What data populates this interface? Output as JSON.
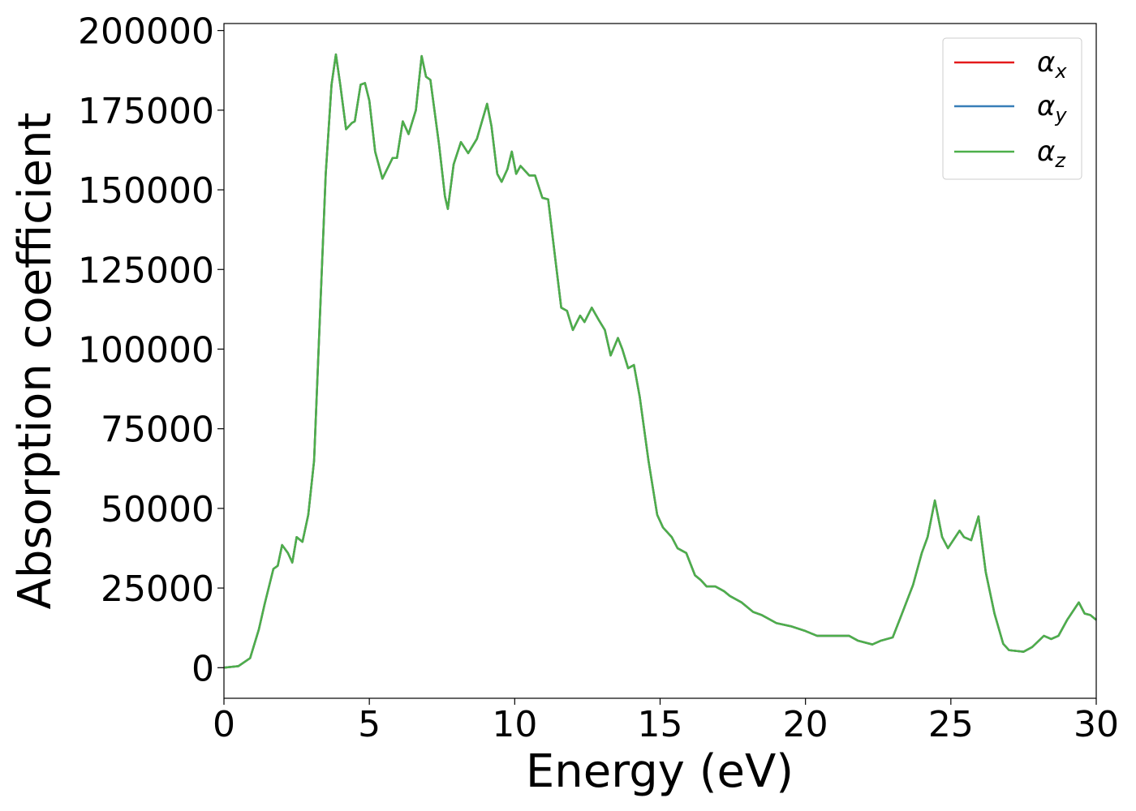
{
  "chart_data": {
    "type": "line",
    "xlabel": "Energy (eV)",
    "ylabel": "Absorption coefficient",
    "x": [
      0,
      0.5,
      0.9,
      1.2,
      1.4,
      1.7,
      1.85,
      2.0,
      2.2,
      2.35,
      2.5,
      2.7,
      2.9,
      3.1,
      3.3,
      3.5,
      3.7,
      3.85,
      4.0,
      4.2,
      4.4,
      4.5,
      4.7,
      4.85,
      5.0,
      5.2,
      5.45,
      5.8,
      5.95,
      6.15,
      6.35,
      6.6,
      6.8,
      6.95,
      7.1,
      7.4,
      7.6,
      7.7,
      7.9,
      8.15,
      8.4,
      8.7,
      9.05,
      9.2,
      9.4,
      9.55,
      9.75,
      9.9,
      10.05,
      10.2,
      10.5,
      10.7,
      10.95,
      11.15,
      11.4,
      11.6,
      11.8,
      12.0,
      12.25,
      12.4,
      12.65,
      12.9,
      13.1,
      13.3,
      13.55,
      13.7,
      13.9,
      14.1,
      14.3,
      14.6,
      14.9,
      15.1,
      15.4,
      15.6,
      15.9,
      16.2,
      16.4,
      16.6,
      16.9,
      17.2,
      17.4,
      17.8,
      18.2,
      18.5,
      19.0,
      19.5,
      20.0,
      20.4,
      20.8,
      21.2,
      21.5,
      21.8,
      22.3,
      22.6,
      23.0,
      23.3,
      23.7,
      24.0,
      24.2,
      24.45,
      24.7,
      24.9,
      25.3,
      25.45,
      25.7,
      25.95,
      26.2,
      26.5,
      26.8,
      27.0,
      27.5,
      27.8,
      28.2,
      28.45,
      28.7,
      29.0,
      29.4,
      29.6,
      29.8,
      30.0
    ],
    "series": [
      {
        "name": "αx",
        "color": "#e41a1c",
        "values": [
          0,
          500,
          3000,
          12000,
          20000,
          31000,
          32000,
          38500,
          36000,
          33000,
          41000,
          39500,
          48000,
          65000,
          110000,
          155000,
          183000,
          192500,
          183000,
          169000,
          171000,
          171500,
          183000,
          183500,
          178000,
          162000,
          153500,
          160000,
          160000,
          171500,
          167500,
          175000,
          192000,
          185500,
          184500,
          164000,
          148000,
          144000,
          158000,
          165000,
          161500,
          166000,
          177000,
          170000,
          155000,
          152500,
          156500,
          162000,
          155000,
          157500,
          154500,
          154500,
          147500,
          147000,
          128000,
          113000,
          112000,
          106000,
          110500,
          108500,
          113000,
          109000,
          106000,
          98000,
          103500,
          100000,
          94000,
          95000,
          85000,
          65000,
          48000,
          44000,
          41000,
          37500,
          36000,
          29000,
          27500,
          25500,
          25500,
          24000,
          22500,
          20500,
          17500,
          16500,
          14000,
          13000,
          11500,
          10000,
          10000,
          10000,
          10000,
          8500,
          7300,
          8500,
          9500,
          16500,
          26000,
          36000,
          41000,
          52500,
          41000,
          37500,
          43000,
          41000,
          40000,
          47500,
          30000,
          17000,
          7500,
          5500,
          5000,
          6500,
          10000,
          9000,
          10000,
          15000,
          20500,
          17000,
          16500,
          15000
        ]
      },
      {
        "name": "αy",
        "color": "#377eb8",
        "values": [
          0,
          500,
          3000,
          12000,
          20000,
          31000,
          32000,
          38500,
          36000,
          33000,
          41000,
          39500,
          48000,
          65000,
          110000,
          155000,
          183000,
          192500,
          183000,
          169000,
          171000,
          171500,
          183000,
          183500,
          178000,
          162000,
          153500,
          160000,
          160000,
          171500,
          167500,
          175000,
          192000,
          185500,
          184500,
          164000,
          148000,
          144000,
          158000,
          165000,
          161500,
          166000,
          177000,
          170000,
          155000,
          152500,
          156500,
          162000,
          155000,
          157500,
          154500,
          154500,
          147500,
          147000,
          128000,
          113000,
          112000,
          106000,
          110500,
          108500,
          113000,
          109000,
          106000,
          98000,
          103500,
          100000,
          94000,
          95000,
          85000,
          65000,
          48000,
          44000,
          41000,
          37500,
          36000,
          29000,
          27500,
          25500,
          25500,
          24000,
          22500,
          20500,
          17500,
          16500,
          14000,
          13000,
          11500,
          10000,
          10000,
          10000,
          10000,
          8500,
          7300,
          8500,
          9500,
          16500,
          26000,
          36000,
          41000,
          52500,
          41000,
          37500,
          43000,
          41000,
          40000,
          47500,
          30000,
          17000,
          7500,
          5500,
          5000,
          6500,
          10000,
          9000,
          10000,
          15000,
          20500,
          17000,
          16500,
          15000
        ]
      },
      {
        "name": "αz",
        "color": "#4daf4a",
        "values": [
          0,
          500,
          3000,
          12000,
          20000,
          31000,
          32000,
          38500,
          36000,
          33000,
          41000,
          39500,
          48000,
          65000,
          110000,
          155000,
          183000,
          192500,
          183000,
          169000,
          171000,
          171500,
          183000,
          183500,
          178000,
          162000,
          153500,
          160000,
          160000,
          171500,
          167500,
          175000,
          192000,
          185500,
          184500,
          164000,
          148000,
          144000,
          158000,
          165000,
          161500,
          166000,
          177000,
          170000,
          155000,
          152500,
          156500,
          162000,
          155000,
          157500,
          154500,
          154500,
          147500,
          147000,
          128000,
          113000,
          112000,
          106000,
          110500,
          108500,
          113000,
          109000,
          106000,
          98000,
          103500,
          100000,
          94000,
          95000,
          85000,
          65000,
          48000,
          44000,
          41000,
          37500,
          36000,
          29000,
          27500,
          25500,
          25500,
          24000,
          22500,
          20500,
          17500,
          16500,
          14000,
          13000,
          11500,
          10000,
          10000,
          10000,
          10000,
          8500,
          7300,
          8500,
          9500,
          16500,
          26000,
          36000,
          41000,
          52500,
          41000,
          37500,
          43000,
          41000,
          40000,
          47500,
          30000,
          17000,
          7500,
          5500,
          5000,
          6500,
          10000,
          9000,
          10000,
          15000,
          20500,
          17000,
          16500,
          15000
        ]
      }
    ],
    "xlim": [
      0,
      30
    ],
    "xticks": [
      0,
      5,
      10,
      15,
      20,
      25,
      30
    ],
    "ylim": [
      -9600,
      202200
    ],
    "yticks": [
      0,
      25000,
      50000,
      75000,
      100000,
      125000,
      150000,
      175000,
      200000
    ],
    "grid": false,
    "legend": "upper right"
  }
}
